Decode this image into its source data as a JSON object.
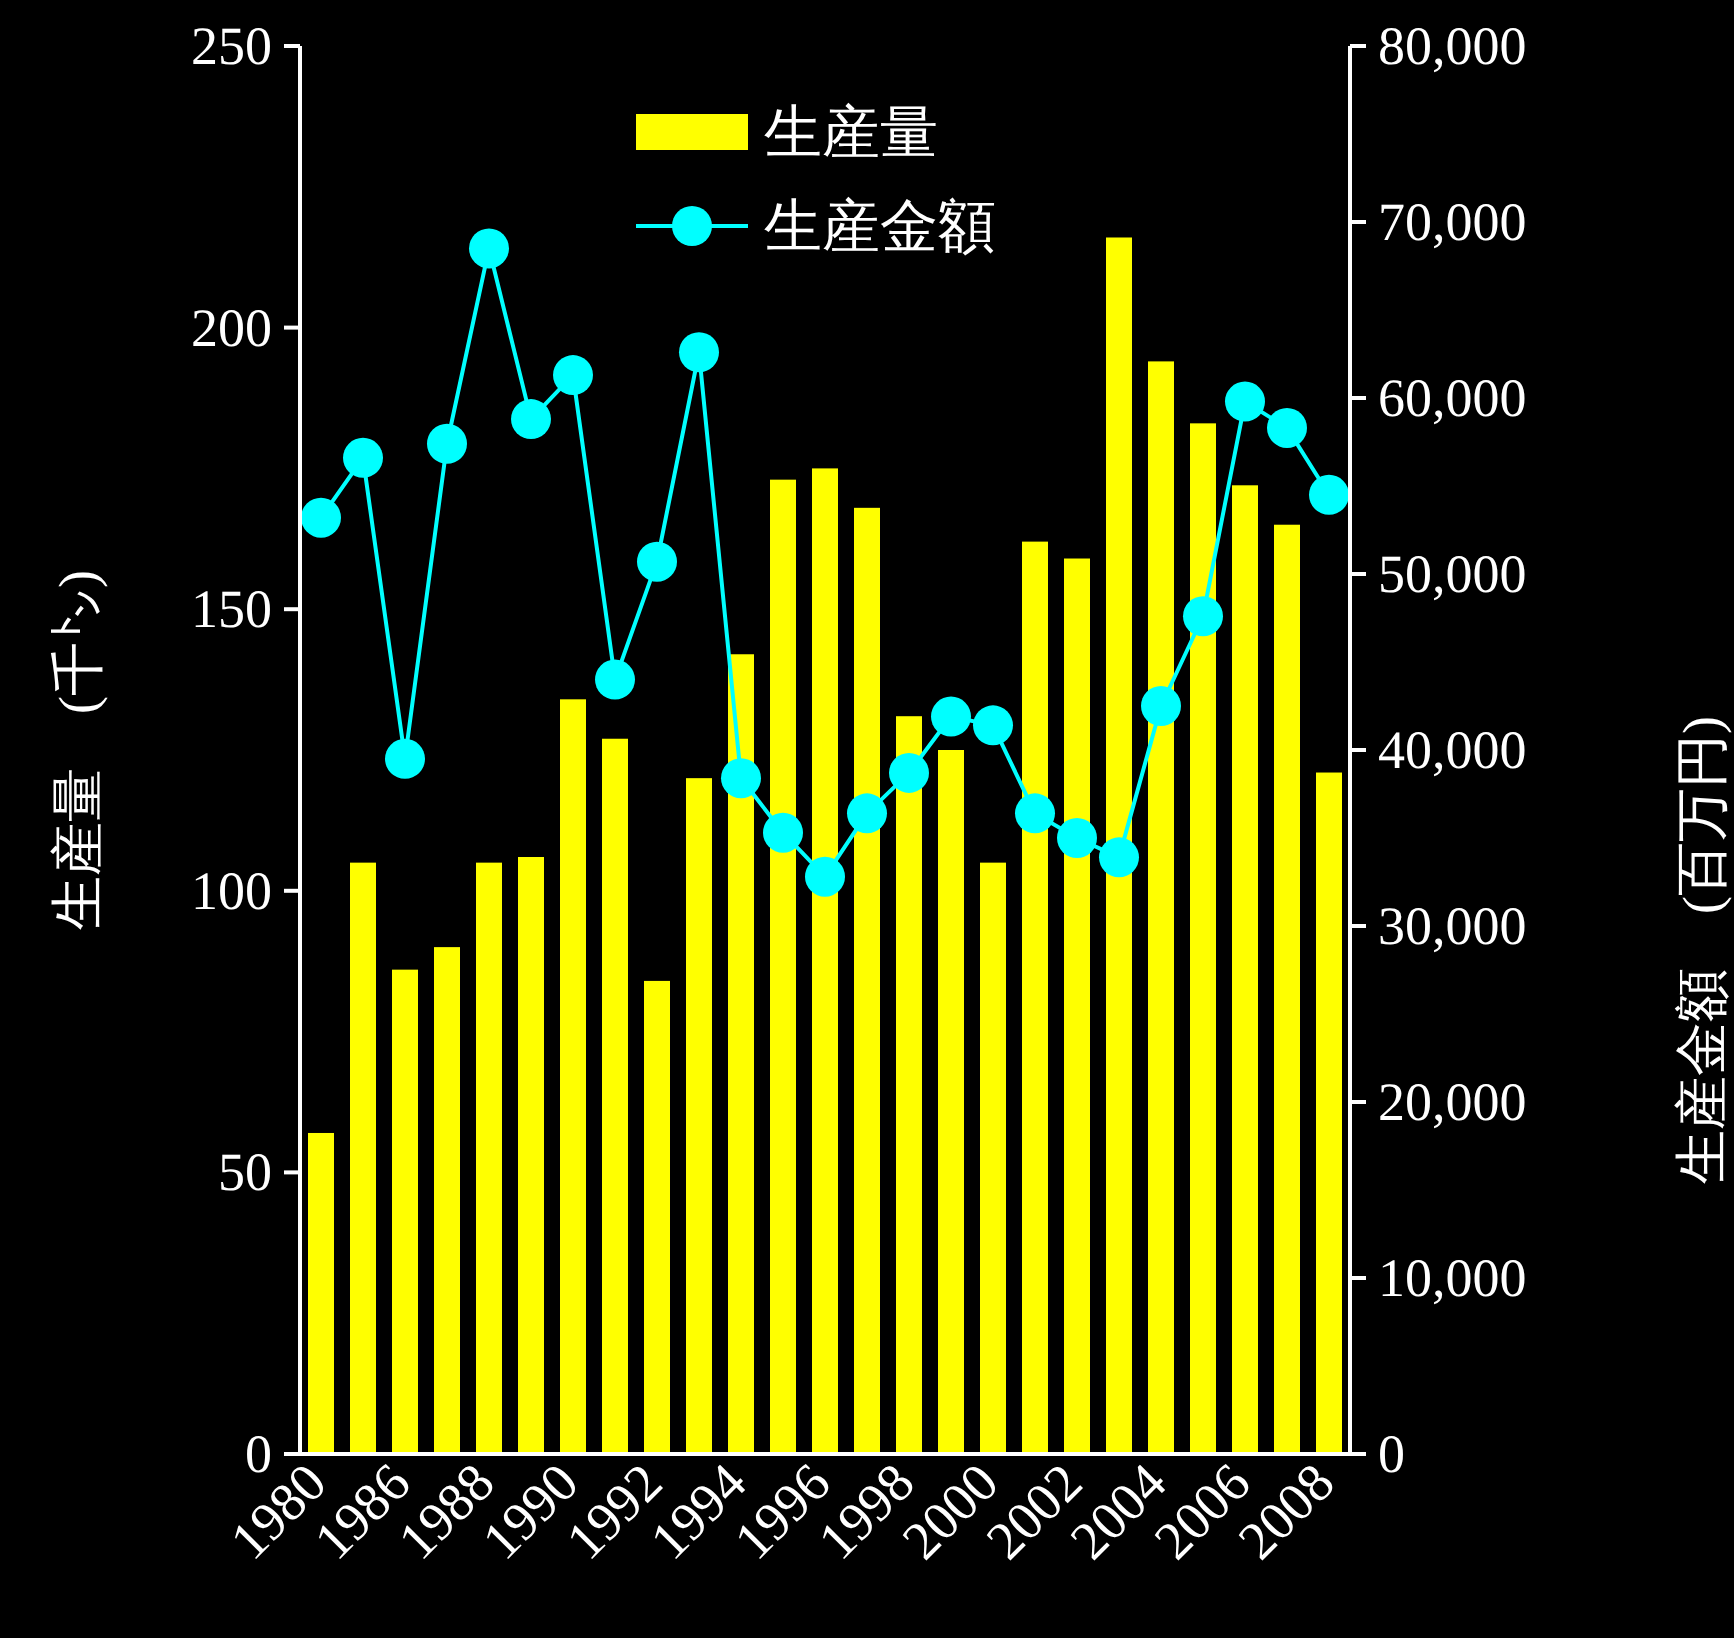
{
  "chart_data": {
    "type": "bar",
    "ylabel": "生産量　(千㌧)",
    "y2label": "生産金額　(百万円)",
    "categories": [
      "1980",
      null,
      "1986",
      null,
      "1988",
      null,
      "1990",
      null,
      "1992",
      null,
      "1994",
      null,
      "1996",
      null,
      "1998",
      null,
      "2000",
      null,
      "2002",
      null,
      "2004",
      null,
      "2006",
      null,
      "2008"
    ],
    "series": [
      {
        "name": "生産量",
        "color": "#ffff00",
        "values": [
          57,
          105,
          86,
          90,
          105,
          106,
          134,
          127,
          84,
          120,
          142,
          173,
          175,
          168,
          131,
          125,
          105,
          162,
          159,
          216,
          194,
          183,
          172,
          165,
          121
        ]
      },
      {
        "name": "生産金額",
        "type": "line",
        "axis": "y2",
        "color": "#00ffff",
        "marker": "circle",
        "values": [
          53200,
          56600,
          39500,
          57400,
          68500,
          58800,
          61300,
          44000,
          50700,
          62600,
          38400,
          35300,
          32800,
          36400,
          38700,
          41900,
          41400,
          36400,
          35000,
          33900,
          42500,
          47600,
          59800,
          58300,
          54500
        ]
      }
    ],
    "ylim": [
      0,
      250
    ],
    "yticks": [
      0,
      50,
      100,
      150,
      200,
      250
    ],
    "y2lim": [
      0,
      80000
    ],
    "y2ticks": [
      {
        "value": 0,
        "label": "0"
      },
      {
        "value": 10000,
        "label": "10,000"
      },
      {
        "value": 20000,
        "label": "20,000"
      },
      {
        "value": 30000,
        "label": "30,000"
      },
      {
        "value": 40000,
        "label": "40,000"
      },
      {
        "value": 50000,
        "label": "50,000"
      },
      {
        "value": 60000,
        "label": "60,000"
      },
      {
        "value": 70000,
        "label": "70,000"
      },
      {
        "value": 80000,
        "label": "80,000"
      }
    ],
    "legend": "top",
    "grid": false
  }
}
